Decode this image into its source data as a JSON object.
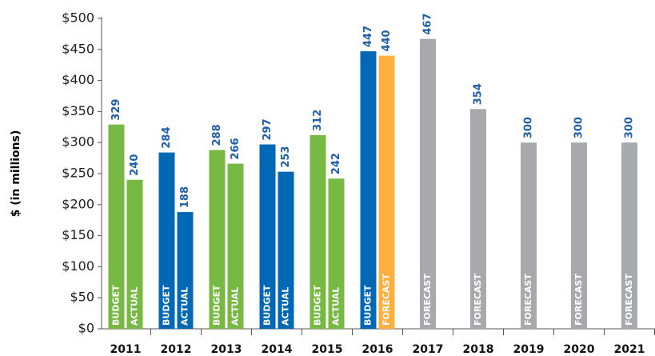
{
  "chart_data": {
    "type": "bar",
    "y_label": "$ (in millions)",
    "categories": [
      "2011",
      "2012",
      "2013",
      "2014",
      "2015",
      "2016",
      "2017",
      "2018",
      "2019",
      "2020",
      "2021"
    ],
    "series": [
      {
        "name": "BUDGET",
        "values": [
          329,
          284,
          288,
          297,
          312,
          447,
          null,
          null,
          null,
          null,
          null
        ],
        "colors": [
          "#77b943",
          "#0068b4",
          "#77b943",
          "#0068b4",
          "#77b943",
          "#0068b4",
          null,
          null,
          null,
          null,
          null
        ]
      },
      {
        "name": "ACTUAL",
        "values": [
          240,
          188,
          266,
          253,
          242,
          null,
          null,
          null,
          null,
          null,
          null
        ],
        "colors": [
          "#77b943",
          "#0068b4",
          "#77b943",
          "#0068b4",
          "#77b943",
          null,
          null,
          null,
          null,
          null,
          null
        ]
      },
      {
        "name": "FORECAST",
        "values": [
          null,
          null,
          null,
          null,
          null,
          440,
          467,
          354,
          300,
          300,
          300
        ],
        "colors": [
          null,
          null,
          null,
          null,
          null,
          "#fbb040",
          "#a7a9ac",
          "#a7a9ac",
          "#a7a9ac",
          "#a7a9ac",
          "#a7a9ac"
        ]
      }
    ],
    "value_label_color": "#1f5ea8",
    "ylim": [
      0,
      500
    ],
    "yticks": [
      {
        "value": 0,
        "label": "$0"
      },
      {
        "value": 50,
        "label": "$50"
      },
      {
        "value": 100,
        "label": "$100"
      },
      {
        "value": 150,
        "label": "$150"
      },
      {
        "value": 200,
        "label": "$200"
      },
      {
        "value": 250,
        "label": "$250"
      },
      {
        "value": 300,
        "label": "$300"
      },
      {
        "value": 350,
        "label": "$350"
      },
      {
        "value": 400,
        "label": "$400"
      },
      {
        "value": 450,
        "label": "$450"
      },
      {
        "value": 500,
        "label": "$500"
      }
    ]
  }
}
